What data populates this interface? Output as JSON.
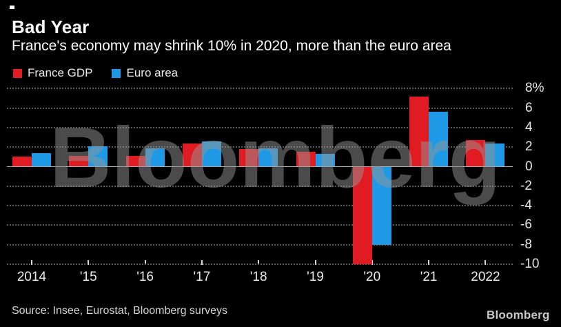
{
  "header": {
    "title": "Bad Year",
    "subtitle": "France's economy may shrink 10% in 2020, more than the euro area"
  },
  "legend": [
    {
      "label": "France GDP",
      "color": "#e11b22"
    },
    {
      "label": "Euro area",
      "color": "#1d99e5"
    }
  ],
  "chart_data": {
    "type": "bar",
    "title": "Bad Year",
    "subtitle": "France's economy may shrink 10% in 2020, more than the euro area",
    "categories": [
      "2014",
      "'15",
      "'16",
      "'17",
      "'18",
      "'19",
      "'20",
      "'21",
      "2022"
    ],
    "series": [
      {
        "name": "France GDP",
        "color": "#e11b22",
        "values": [
          1.0,
          1.1,
          1.1,
          2.4,
          1.8,
          1.5,
          -10.0,
          7.2,
          2.7
        ]
      },
      {
        "name": "Euro area",
        "color": "#1d99e5",
        "values": [
          1.4,
          2.1,
          1.9,
          2.6,
          1.9,
          1.3,
          -8.0,
          5.6,
          2.4
        ]
      }
    ],
    "xlabel": "",
    "ylabel": "",
    "ylim": [
      -10,
      8
    ],
    "ytick_step": 2,
    "ytick_labels": [
      "8%",
      "6",
      "4",
      "2",
      "0",
      "-2",
      "-4",
      "-6",
      "-8",
      "-10"
    ],
    "grid": "horizontal dotted, solid zero line",
    "legend_position": "top-left",
    "unit": "percent"
  },
  "watermark": "Bloomberg",
  "source": "Source: Insee, Eurostat, Bloomberg surveys",
  "logo": "Bloomberg"
}
